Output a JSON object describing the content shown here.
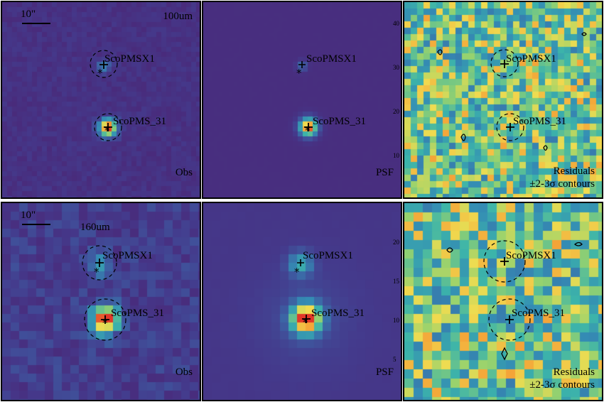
{
  "rows": [
    {
      "band": "100um",
      "scale_label": "10\"",
      "panels": [
        {
          "kind": "obs",
          "label": "Obs"
        },
        {
          "kind": "psf",
          "label": "PSF"
        },
        {
          "kind": "res",
          "label_line1": "Residuals",
          "label_line2": "±2-3σ contours"
        }
      ],
      "sources": [
        {
          "name": "ScoPMSX1",
          "strength": 0.25
        },
        {
          "name": "ScoPMS_31",
          "strength": 1.0
        }
      ],
      "axis_ticks": [
        "40",
        "30",
        "20",
        "10"
      ]
    },
    {
      "band": "160um",
      "scale_label": "10\"",
      "panels": [
        {
          "kind": "obs",
          "label": "Obs"
        },
        {
          "kind": "psf",
          "label": "PSF"
        },
        {
          "kind": "res",
          "label_line1": "Residuals",
          "label_line2": "±2-3σ contours"
        }
      ],
      "sources": [
        {
          "name": "ScoPMSX1",
          "strength": 0.3
        },
        {
          "name": "ScoPMS_31",
          "strength": 1.0
        }
      ],
      "axis_ticks": [
        "20",
        "15",
        "10",
        "5"
      ]
    }
  ],
  "colors": {
    "background_obs": "#4a2a7a",
    "background_psf": "#4b2c80",
    "peak": "#e23a2a"
  }
}
